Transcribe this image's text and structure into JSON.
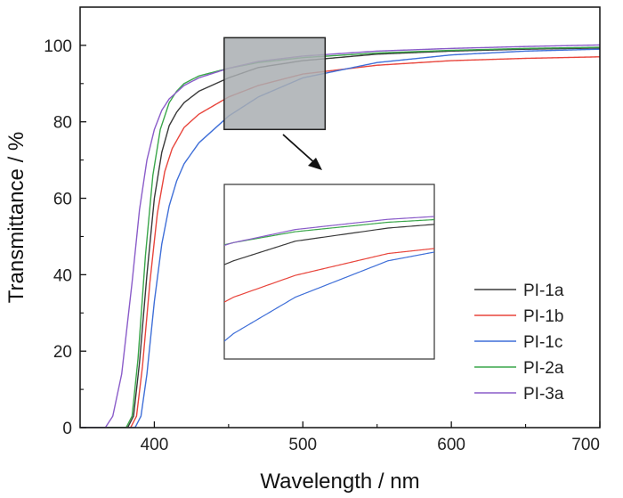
{
  "chart_data": {
    "type": "line",
    "title": "",
    "xlabel": "Wavelength / nm",
    "ylabel": "Transmittance / %",
    "xlim": [
      350,
      700
    ],
    "ylim": [
      0,
      110
    ],
    "xticks": [
      400,
      500,
      600,
      700
    ],
    "yticks": [
      0,
      20,
      40,
      60,
      80,
      100
    ],
    "grid": false,
    "legend_position": "bottom-right",
    "series": [
      {
        "name": "PI-1a",
        "color": "#3a3a3a",
        "points": [
          [
            350,
            0
          ],
          [
            382,
            0
          ],
          [
            386,
            3
          ],
          [
            390,
            17
          ],
          [
            395,
            40
          ],
          [
            400,
            60
          ],
          [
            405,
            72
          ],
          [
            410,
            79
          ],
          [
            415,
            82.5
          ],
          [
            420,
            85
          ],
          [
            430,
            88
          ],
          [
            450,
            91.5
          ],
          [
            470,
            94.2
          ],
          [
            500,
            96
          ],
          [
            550,
            97.7
          ],
          [
            600,
            98.5
          ],
          [
            650,
            99
          ],
          [
            700,
            99.3
          ]
        ]
      },
      {
        "name": "PI-1b",
        "color": "#e8453c",
        "points": [
          [
            350,
            0
          ],
          [
            384,
            0
          ],
          [
            388,
            3
          ],
          [
            392,
            16
          ],
          [
            397,
            38
          ],
          [
            402,
            56
          ],
          [
            407,
            67
          ],
          [
            412,
            73
          ],
          [
            420,
            78.5
          ],
          [
            430,
            82
          ],
          [
            450,
            86.5
          ],
          [
            470,
            89.5
          ],
          [
            500,
            92.5
          ],
          [
            550,
            94.8
          ],
          [
            600,
            96
          ],
          [
            650,
            96.6
          ],
          [
            700,
            97
          ]
        ]
      },
      {
        "name": "PI-1c",
        "color": "#3f6fd8",
        "points": [
          [
            350,
            0
          ],
          [
            387,
            0
          ],
          [
            391,
            3
          ],
          [
            395,
            14
          ],
          [
            400,
            33
          ],
          [
            405,
            48
          ],
          [
            410,
            58
          ],
          [
            415,
            64.5
          ],
          [
            420,
            69
          ],
          [
            430,
            74.5
          ],
          [
            450,
            81.5
          ],
          [
            470,
            86.5
          ],
          [
            500,
            91.5
          ],
          [
            550,
            95.5
          ],
          [
            600,
            97.5
          ],
          [
            650,
            98.5
          ],
          [
            700,
            99
          ]
        ]
      },
      {
        "name": "PI-2a",
        "color": "#3aa64a",
        "points": [
          [
            350,
            0
          ],
          [
            381,
            0
          ],
          [
            385,
            3
          ],
          [
            389,
            18
          ],
          [
            394,
            45
          ],
          [
            399,
            66
          ],
          [
            404,
            78
          ],
          [
            410,
            85
          ],
          [
            415,
            88
          ],
          [
            420,
            90
          ],
          [
            430,
            92
          ],
          [
            450,
            94
          ],
          [
            470,
            95.5
          ],
          [
            500,
            96.8
          ],
          [
            550,
            98
          ],
          [
            600,
            98.7
          ],
          [
            650,
            99.2
          ],
          [
            700,
            99.5
          ]
        ]
      },
      {
        "name": "PI-3a",
        "color": "#8a5cc9",
        "points": [
          [
            350,
            0
          ],
          [
            367,
            0
          ],
          [
            372,
            3
          ],
          [
            378,
            14
          ],
          [
            385,
            38
          ],
          [
            390,
            57
          ],
          [
            395,
            70
          ],
          [
            400,
            78
          ],
          [
            405,
            83
          ],
          [
            410,
            86
          ],
          [
            420,
            89.5
          ],
          [
            430,
            91.5
          ],
          [
            450,
            94
          ],
          [
            470,
            95.8
          ],
          [
            500,
            97.2
          ],
          [
            550,
            98.5
          ],
          [
            600,
            99.2
          ],
          [
            650,
            99.7
          ],
          [
            700,
            100.1
          ]
        ]
      }
    ],
    "zoom_region": {
      "xlim": [
        447,
        515
      ],
      "ylim": [
        78,
        102
      ]
    }
  }
}
